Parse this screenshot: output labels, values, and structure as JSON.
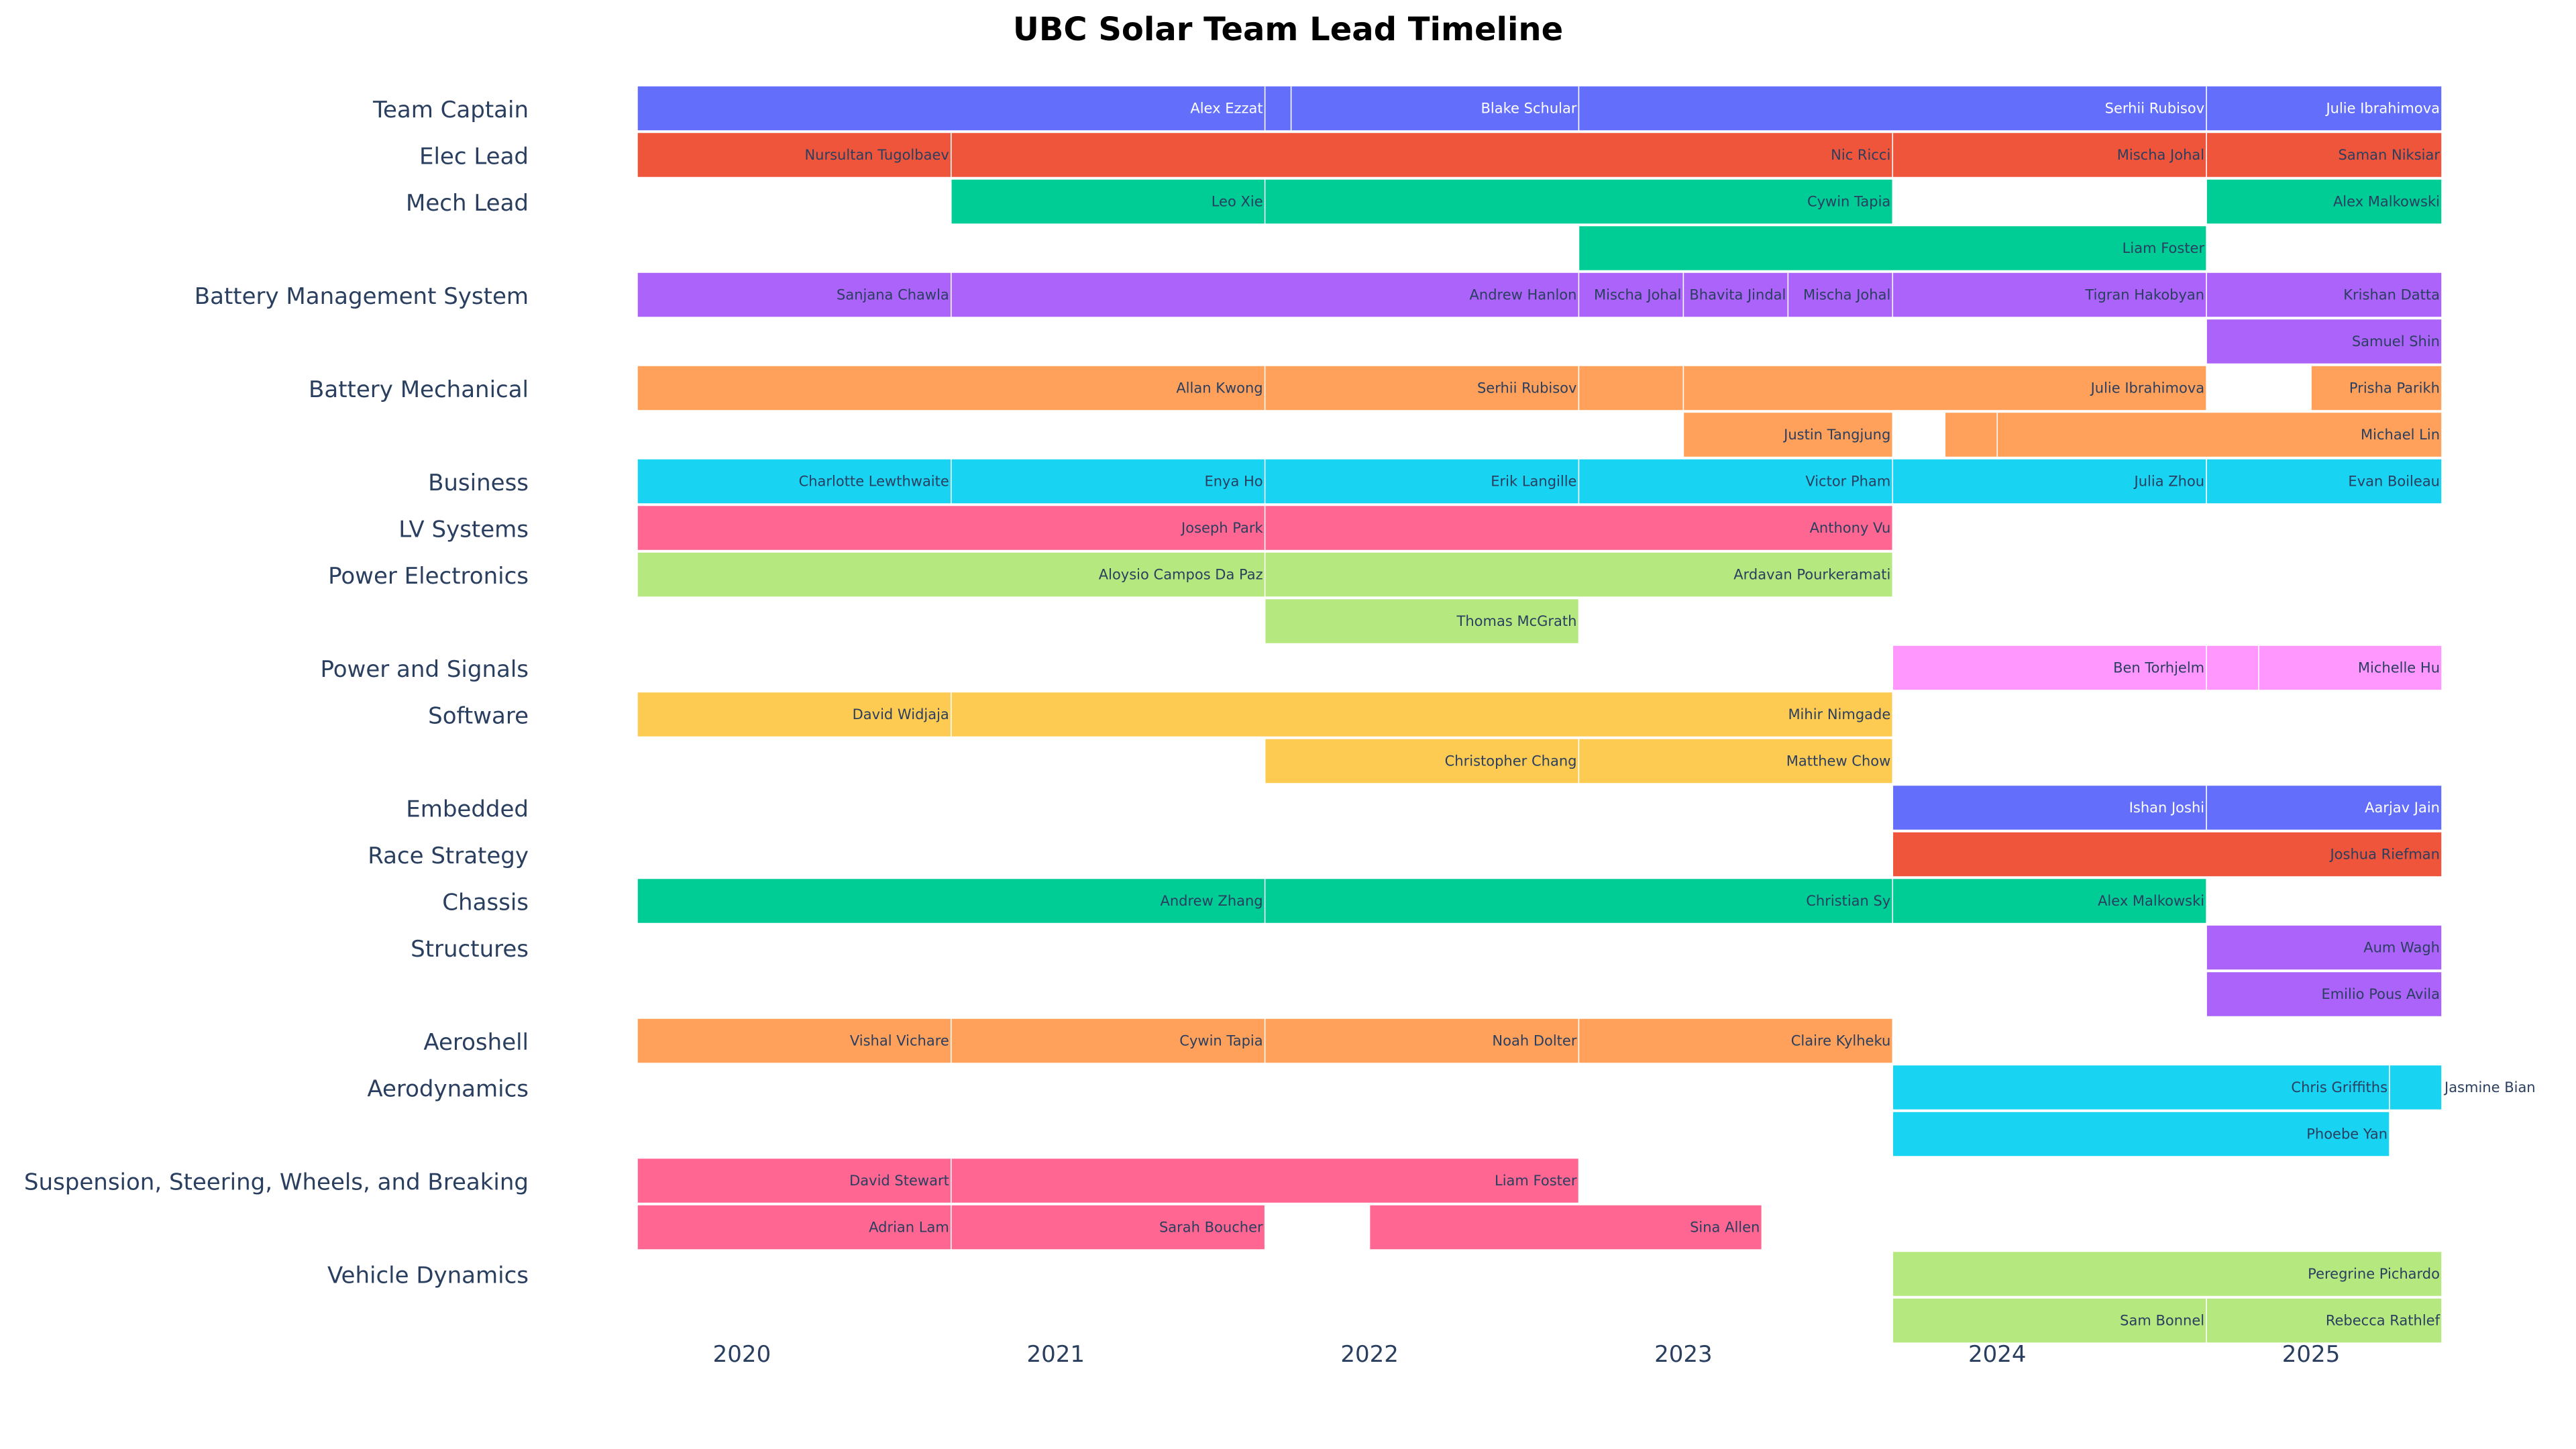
{
  "chart_data": {
    "type": "timeline",
    "title": "UBC Solar Team Lead Timeline",
    "x_ticks": [
      "2020",
      "2021",
      "2022",
      "2023",
      "2024",
      "2025"
    ],
    "x_range": [
      "2019-09",
      "2025-06"
    ],
    "gridlines": false,
    "legend": "none",
    "colors": {
      "blue": "#636efa",
      "red": "#ef553b",
      "green": "#00cc96",
      "purple": "#ab63fa",
      "orange": "#ffa15a",
      "cyan": "#19d3f3",
      "pink": "#ff6692",
      "lime": "#b6e880",
      "magenta": "#ff97ff",
      "yellow": "#fecb52"
    },
    "rows": [
      {
        "label": "Team Captain",
        "color": "blue",
        "lanes": [
          [
            {
              "name": "Alex Ezzat",
              "start": "2019-09",
              "end": "2021-09"
            },
            {
              "name": "",
              "start": "2021-09",
              "end": "2021-10"
            },
            {
              "name": "Blake Schular",
              "start": "2021-10",
              "end": "2022-09"
            },
            {
              "name": "Serhii Rubisov",
              "start": "2022-09",
              "end": "2024-09"
            },
            {
              "name": "Julie Ibrahimova",
              "start": "2024-09",
              "end": "2025-06"
            }
          ]
        ]
      },
      {
        "label": "Elec Lead",
        "color": "red",
        "lanes": [
          [
            {
              "name": "Nursultan Tugolbaev",
              "start": "2019-09",
              "end": "2020-09"
            },
            {
              "name": "Nic Ricci",
              "start": "2020-09",
              "end": "2023-09"
            },
            {
              "name": "Mischa Johal",
              "start": "2023-09",
              "end": "2024-09"
            },
            {
              "name": "Saman Niksiar",
              "start": "2024-09",
              "end": "2025-06"
            }
          ]
        ]
      },
      {
        "label": "Mech Lead",
        "color": "green",
        "lanes": [
          [
            {
              "name": "Leo Xie",
              "start": "2020-09",
              "end": "2021-09"
            },
            {
              "name": "Cywin Tapia",
              "start": "2021-09",
              "end": "2023-09"
            },
            {
              "name": "Alex Malkowski",
              "start": "2024-09",
              "end": "2025-06"
            }
          ],
          [
            {
              "name": "Liam Foster",
              "start": "2022-09",
              "end": "2024-09"
            }
          ]
        ]
      },
      {
        "label": "Battery Management System",
        "color": "purple",
        "lanes": [
          [
            {
              "name": "Sanjana Chawla",
              "start": "2019-09",
              "end": "2020-09"
            },
            {
              "name": "Andrew Hanlon",
              "start": "2020-09",
              "end": "2022-09"
            },
            {
              "name": "Mischa Johal",
              "start": "2022-09",
              "end": "2023-01"
            },
            {
              "name": "Bhavita Jindal",
              "start": "2023-01",
              "end": "2023-05"
            },
            {
              "name": "Mischa Johal",
              "start": "2023-05",
              "end": "2023-09"
            },
            {
              "name": "Tigran Hakobyan",
              "start": "2023-09",
              "end": "2024-09"
            },
            {
              "name": "Krishan Datta",
              "start": "2024-09",
              "end": "2025-06"
            }
          ],
          [
            {
              "name": "Samuel Shin",
              "start": "2024-09",
              "end": "2025-06"
            }
          ]
        ]
      },
      {
        "label": "Battery Mechanical",
        "color": "orange",
        "lanes": [
          [
            {
              "name": "Allan Kwong",
              "start": "2019-09",
              "end": "2021-09"
            },
            {
              "name": "Serhii Rubisov",
              "start": "2021-09",
              "end": "2022-09"
            },
            {
              "name": "",
              "start": "2022-09",
              "end": "2023-01"
            },
            {
              "name": "Julie Ibrahimova",
              "start": "2023-01",
              "end": "2024-09"
            },
            {
              "name": "Prisha Parikh",
              "start": "2025-01",
              "end": "2025-06"
            }
          ],
          [
            {
              "name": "Justin Tangjung",
              "start": "2023-01",
              "end": "2023-09"
            },
            {
              "name": "",
              "start": "2023-11",
              "end": "2024-01"
            },
            {
              "name": "Michael Lin",
              "start": "2024-01",
              "end": "2025-06"
            }
          ]
        ]
      },
      {
        "label": "Business",
        "color": "cyan",
        "lanes": [
          [
            {
              "name": "Charlotte Lewthwaite",
              "start": "2019-09",
              "end": "2020-09"
            },
            {
              "name": "Enya Ho",
              "start": "2020-09",
              "end": "2021-09"
            },
            {
              "name": "Erik Langille",
              "start": "2021-09",
              "end": "2022-09"
            },
            {
              "name": "Victor Pham",
              "start": "2022-09",
              "end": "2023-09"
            },
            {
              "name": "Julia Zhou",
              "start": "2023-09",
              "end": "2024-09"
            },
            {
              "name": "Evan Boileau",
              "start": "2024-09",
              "end": "2025-06"
            }
          ]
        ]
      },
      {
        "label": "LV Systems",
        "color": "pink",
        "lanes": [
          [
            {
              "name": "Joseph Park",
              "start": "2019-09",
              "end": "2021-09"
            },
            {
              "name": "Anthony Vu",
              "start": "2021-09",
              "end": "2023-09"
            }
          ]
        ]
      },
      {
        "label": "Power Electronics",
        "color": "lime",
        "lanes": [
          [
            {
              "name": "Aloysio Campos Da Paz",
              "start": "2019-09",
              "end": "2021-09"
            },
            {
              "name": "Ardavan Pourkeramati",
              "start": "2021-09",
              "end": "2023-09"
            }
          ],
          [
            {
              "name": "Thomas McGrath",
              "start": "2021-09",
              "end": "2022-09"
            }
          ]
        ]
      },
      {
        "label": "Power and Signals",
        "color": "magenta",
        "lanes": [
          [
            {
              "name": "Ben Torhjelm",
              "start": "2023-09",
              "end": "2024-09"
            },
            {
              "name": "",
              "start": "2024-09",
              "end": "2024-11"
            },
            {
              "name": "Michelle Hu",
              "start": "2024-11",
              "end": "2025-06"
            }
          ]
        ]
      },
      {
        "label": "Software",
        "color": "yellow",
        "lanes": [
          [
            {
              "name": "David Widjaja",
              "start": "2019-09",
              "end": "2020-09"
            },
            {
              "name": "Mihir Nimgade",
              "start": "2020-09",
              "end": "2023-09"
            }
          ],
          [
            {
              "name": "Christopher Chang",
              "start": "2021-09",
              "end": "2022-09"
            },
            {
              "name": "Matthew Chow",
              "start": "2022-09",
              "end": "2023-09"
            }
          ]
        ]
      },
      {
        "label": "Embedded",
        "color": "blue",
        "lanes": [
          [
            {
              "name": "Ishan Joshi",
              "start": "2023-09",
              "end": "2024-09"
            },
            {
              "name": "Aarjav Jain",
              "start": "2024-09",
              "end": "2025-06"
            }
          ]
        ]
      },
      {
        "label": "Race Strategy",
        "color": "red",
        "lanes": [
          [
            {
              "name": "Joshua Riefman",
              "start": "2023-09",
              "end": "2025-06"
            }
          ]
        ]
      },
      {
        "label": "Chassis",
        "color": "green",
        "lanes": [
          [
            {
              "name": "Andrew Zhang",
              "start": "2019-09",
              "end": "2021-09"
            },
            {
              "name": "Christian Sy",
              "start": "2021-09",
              "end": "2023-09"
            },
            {
              "name": "Alex Malkowski",
              "start": "2023-09",
              "end": "2024-09"
            }
          ]
        ]
      },
      {
        "label": "Structures",
        "color": "purple",
        "lanes": [
          [
            {
              "name": "Aum Wagh",
              "start": "2024-09",
              "end": "2025-06"
            }
          ],
          [
            {
              "name": "Emilio Pous Avila",
              "start": "2024-09",
              "end": "2025-06"
            }
          ]
        ]
      },
      {
        "label": "Aeroshell",
        "color": "orange",
        "lanes": [
          [
            {
              "name": "Vishal Vichare",
              "start": "2019-09",
              "end": "2020-09"
            },
            {
              "name": "Cywin Tapia",
              "start": "2020-09",
              "end": "2021-09"
            },
            {
              "name": "Noah Dolter",
              "start": "2021-09",
              "end": "2022-09"
            },
            {
              "name": "Claire Kylheku",
              "start": "2022-09",
              "end": "2023-09"
            }
          ]
        ]
      },
      {
        "label": "Aerodynamics",
        "color": "cyan",
        "lanes": [
          [
            {
              "name": "Chris Griffiths",
              "start": "2023-09",
              "end": "2025-04"
            },
            {
              "name": "Jasmine Bian",
              "start": "2025-04",
              "end": "2025-06",
              "label_outside": true
            }
          ],
          [
            {
              "name": "Phoebe Yan",
              "start": "2023-09",
              "end": "2025-04"
            }
          ]
        ]
      },
      {
        "label": "Suspension, Steering, Wheels, and Breaking",
        "color": "pink",
        "lanes": [
          [
            {
              "name": "David Stewart",
              "start": "2019-09",
              "end": "2020-09"
            },
            {
              "name": "Liam Foster",
              "start": "2020-09",
              "end": "2022-09"
            }
          ],
          [
            {
              "name": "Adrian Lam",
              "start": "2019-09",
              "end": "2020-09"
            },
            {
              "name": "Sarah Boucher",
              "start": "2020-09",
              "end": "2021-09"
            },
            {
              "name": "Sina Allen",
              "start": "2022-01",
              "end": "2023-04"
            }
          ]
        ]
      },
      {
        "label": "Vehicle Dynamics",
        "color": "lime",
        "lanes": [
          [
            {
              "name": "Peregrine Pichardo",
              "start": "2023-09",
              "end": "2025-06"
            }
          ],
          [
            {
              "name": "Sam Bonnel",
              "start": "2023-09",
              "end": "2024-09"
            },
            {
              "name": "Rebecca Rathlef",
              "start": "2024-09",
              "end": "2025-06"
            }
          ]
        ]
      }
    ]
  }
}
